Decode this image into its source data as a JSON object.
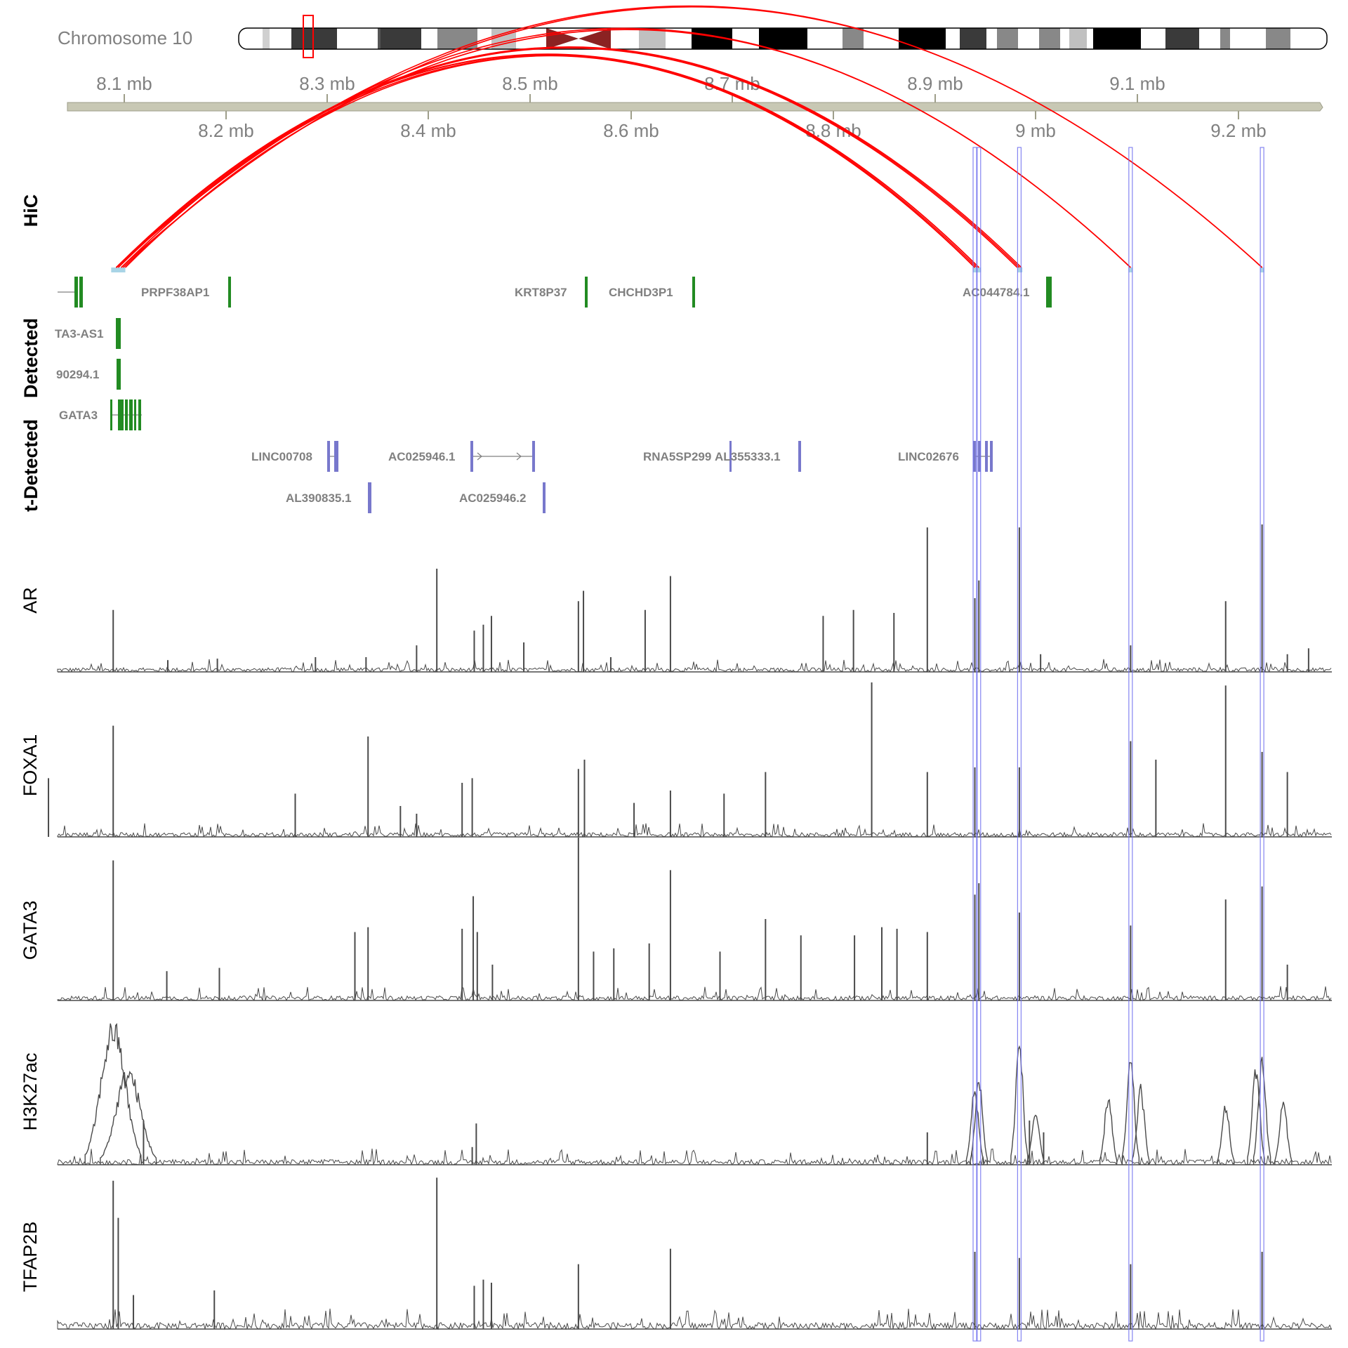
{
  "colors": {
    "hic_arc": "#ff0000",
    "anchor": "#a8d4e6",
    "highlight": "#7070ee",
    "detected_gene": "#228b22",
    "not_detected_gene": "#7878cc",
    "signal": "#4a4a4a",
    "axis": "#c8c8b4",
    "text_gray": "#808080",
    "centromere": "#8b2222"
  },
  "ideogram": {
    "label": "Chromosome 10"
  },
  "axis": {
    "ticks_top": [
      "8.1 mb",
      "8.3 mb",
      "8.5 mb",
      "8.7 mb",
      "8.9 mb",
      "9.1 mb"
    ],
    "ticks_bottom": [
      "8.2 mb",
      "8.4 mb",
      "8.6 mb",
      "8.8 mb",
      "9 mb",
      "9.2 mb"
    ]
  },
  "tracks": {
    "hic": "HiC",
    "detected": "Detected",
    "not_detected": "t-Detected",
    "signals": [
      "AR",
      "FOXA1",
      "GATA3",
      "H3K27ac",
      "TFAP2B"
    ]
  },
  "genes_detected": [
    {
      "label": "PRPF38AP1"
    },
    {
      "label": "KRT8P37"
    },
    {
      "label": "CHCHD3P1"
    },
    {
      "label": "AC044784.1"
    },
    {
      "label": "TA3-AS1"
    },
    {
      "label": "90294.1"
    },
    {
      "label": "GATA3"
    }
  ],
  "genes_not_detected": [
    {
      "label": "LINC00708"
    },
    {
      "label": "AC025946.1"
    },
    {
      "label": "RNA5SP299"
    },
    {
      "label": "AL355333.1"
    },
    {
      "label": "LINC02676"
    },
    {
      "label": "AL390835.1"
    },
    {
      "label": "AC025946.2"
    }
  ],
  "chart_data": {
    "type": "line",
    "xlabel": "",
    "ylabel": "",
    "x_unit": "mb",
    "xlim": [
      8.045,
      9.305
    ],
    "highlight_positions_mb": [
      8.952,
      8.956,
      8.996,
      9.106,
      9.236
    ],
    "hic_loops": [
      {
        "from": 8.103,
        "to": 8.952
      },
      {
        "from": 8.103,
        "to": 8.954
      },
      {
        "from": 8.103,
        "to": 8.956
      },
      {
        "from": 8.103,
        "to": 8.996
      },
      {
        "from": 8.103,
        "to": 8.998
      },
      {
        "from": 8.103,
        "to": 9.106
      },
      {
        "from": 8.103,
        "to": 9.236
      },
      {
        "from": 8.105,
        "to": 8.994
      },
      {
        "from": 8.108,
        "to": 8.952
      },
      {
        "from": 8.108,
        "to": 9.236
      },
      {
        "from": 8.11,
        "to": 9.106
      },
      {
        "from": 8.112,
        "to": 8.956
      }
    ],
    "series": [
      {
        "name": "AR",
        "baseline": 0.04,
        "peaks": [
          [
            8.1,
            0.42
          ],
          [
            8.154,
            0.08
          ],
          [
            8.203,
            0.09
          ],
          [
            8.3,
            0.1
          ],
          [
            8.35,
            0.1
          ],
          [
            8.4,
            0.18
          ],
          [
            8.42,
            0.7
          ],
          [
            8.457,
            0.28
          ],
          [
            8.466,
            0.32
          ],
          [
            8.474,
            0.38
          ],
          [
            8.506,
            0.2
          ],
          [
            8.56,
            0.48
          ],
          [
            8.565,
            0.55
          ],
          [
            8.592,
            0.1
          ],
          [
            8.626,
            0.42
          ],
          [
            8.651,
            0.65
          ],
          [
            8.802,
            0.38
          ],
          [
            8.832,
            0.42
          ],
          [
            8.872,
            0.4
          ],
          [
            8.905,
            0.98
          ],
          [
            8.952,
            0.5
          ],
          [
            8.956,
            0.62
          ],
          [
            8.996,
            0.98
          ],
          [
            9.017,
            0.12
          ],
          [
            9.106,
            0.18
          ],
          [
            9.2,
            0.48
          ],
          [
            9.236,
            1.0
          ],
          [
            9.261,
            0.12
          ],
          [
            9.282,
            0.16
          ]
        ]
      },
      {
        "name": "FOXA1",
        "baseline": 0.04,
        "peaks": [
          [
            8.036,
            0.38
          ],
          [
            8.1,
            0.72
          ],
          [
            8.28,
            0.28
          ],
          [
            8.352,
            0.65
          ],
          [
            8.384,
            0.2
          ],
          [
            8.4,
            0.15
          ],
          [
            8.445,
            0.35
          ],
          [
            8.455,
            0.38
          ],
          [
            8.56,
            0.44
          ],
          [
            8.566,
            0.5
          ],
          [
            8.615,
            0.22
          ],
          [
            8.651,
            0.3
          ],
          [
            8.704,
            0.28
          ],
          [
            8.745,
            0.42
          ],
          [
            8.85,
            1.0
          ],
          [
            8.905,
            0.42
          ],
          [
            8.952,
            0.45
          ],
          [
            8.996,
            0.45
          ],
          [
            9.106,
            0.62
          ],
          [
            9.131,
            0.5
          ],
          [
            9.2,
            0.98
          ],
          [
            9.236,
            0.55
          ],
          [
            9.261,
            0.42
          ]
        ]
      },
      {
        "name": "GATA3",
        "baseline": 0.04,
        "peaks": [
          [
            8.1,
            0.86
          ],
          [
            8.153,
            0.18
          ],
          [
            8.205,
            0.2
          ],
          [
            8.339,
            0.42
          ],
          [
            8.352,
            0.45
          ],
          [
            8.445,
            0.44
          ],
          [
            8.456,
            0.64
          ],
          [
            8.46,
            0.42
          ],
          [
            8.475,
            0.22
          ],
          [
            8.56,
            1.0
          ],
          [
            8.575,
            0.3
          ],
          [
            8.595,
            0.32
          ],
          [
            8.63,
            0.35
          ],
          [
            8.651,
            0.8
          ],
          [
            8.7,
            0.3
          ],
          [
            8.745,
            0.5
          ],
          [
            8.78,
            0.4
          ],
          [
            8.833,
            0.4
          ],
          [
            8.86,
            0.45
          ],
          [
            8.875,
            0.44
          ],
          [
            8.905,
            0.42
          ],
          [
            8.952,
            0.65
          ],
          [
            8.956,
            0.72
          ],
          [
            8.996,
            0.54
          ],
          [
            9.106,
            0.46
          ],
          [
            9.2,
            0.62
          ],
          [
            9.236,
            0.7
          ],
          [
            9.261,
            0.22
          ]
        ]
      },
      {
        "name": "H3K27ac",
        "baseline": 0.05,
        "peaks": [
          [
            8.1,
            1.0
          ],
          [
            8.115,
            0.68
          ],
          [
            8.13,
            0.3
          ],
          [
            8.455,
            0.12
          ],
          [
            8.459,
            0.28
          ],
          [
            8.905,
            0.22
          ],
          [
            8.952,
            0.55
          ],
          [
            8.956,
            0.62
          ],
          [
            8.996,
            0.88
          ],
          [
            9.006,
            0.3
          ],
          [
            9.012,
            0.38
          ],
          [
            9.02,
            0.22
          ],
          [
            9.084,
            0.5
          ],
          [
            9.106,
            0.75
          ],
          [
            9.116,
            0.55
          ],
          [
            9.2,
            0.42
          ],
          [
            9.23,
            0.72
          ],
          [
            9.236,
            0.78
          ],
          [
            9.257,
            0.45
          ]
        ]
      },
      {
        "name": "TFAP2B",
        "baseline": 0.06,
        "peaks": [
          [
            8.1,
            0.96
          ],
          [
            8.105,
            0.72
          ],
          [
            8.12,
            0.22
          ],
          [
            8.2,
            0.25
          ],
          [
            8.42,
            0.98
          ],
          [
            8.457,
            0.28
          ],
          [
            8.466,
            0.32
          ],
          [
            8.474,
            0.3
          ],
          [
            8.56,
            0.42
          ],
          [
            8.651,
            0.52
          ],
          [
            8.952,
            0.5
          ],
          [
            8.996,
            0.46
          ],
          [
            9.106,
            0.42
          ],
          [
            9.236,
            0.5
          ]
        ]
      }
    ]
  }
}
